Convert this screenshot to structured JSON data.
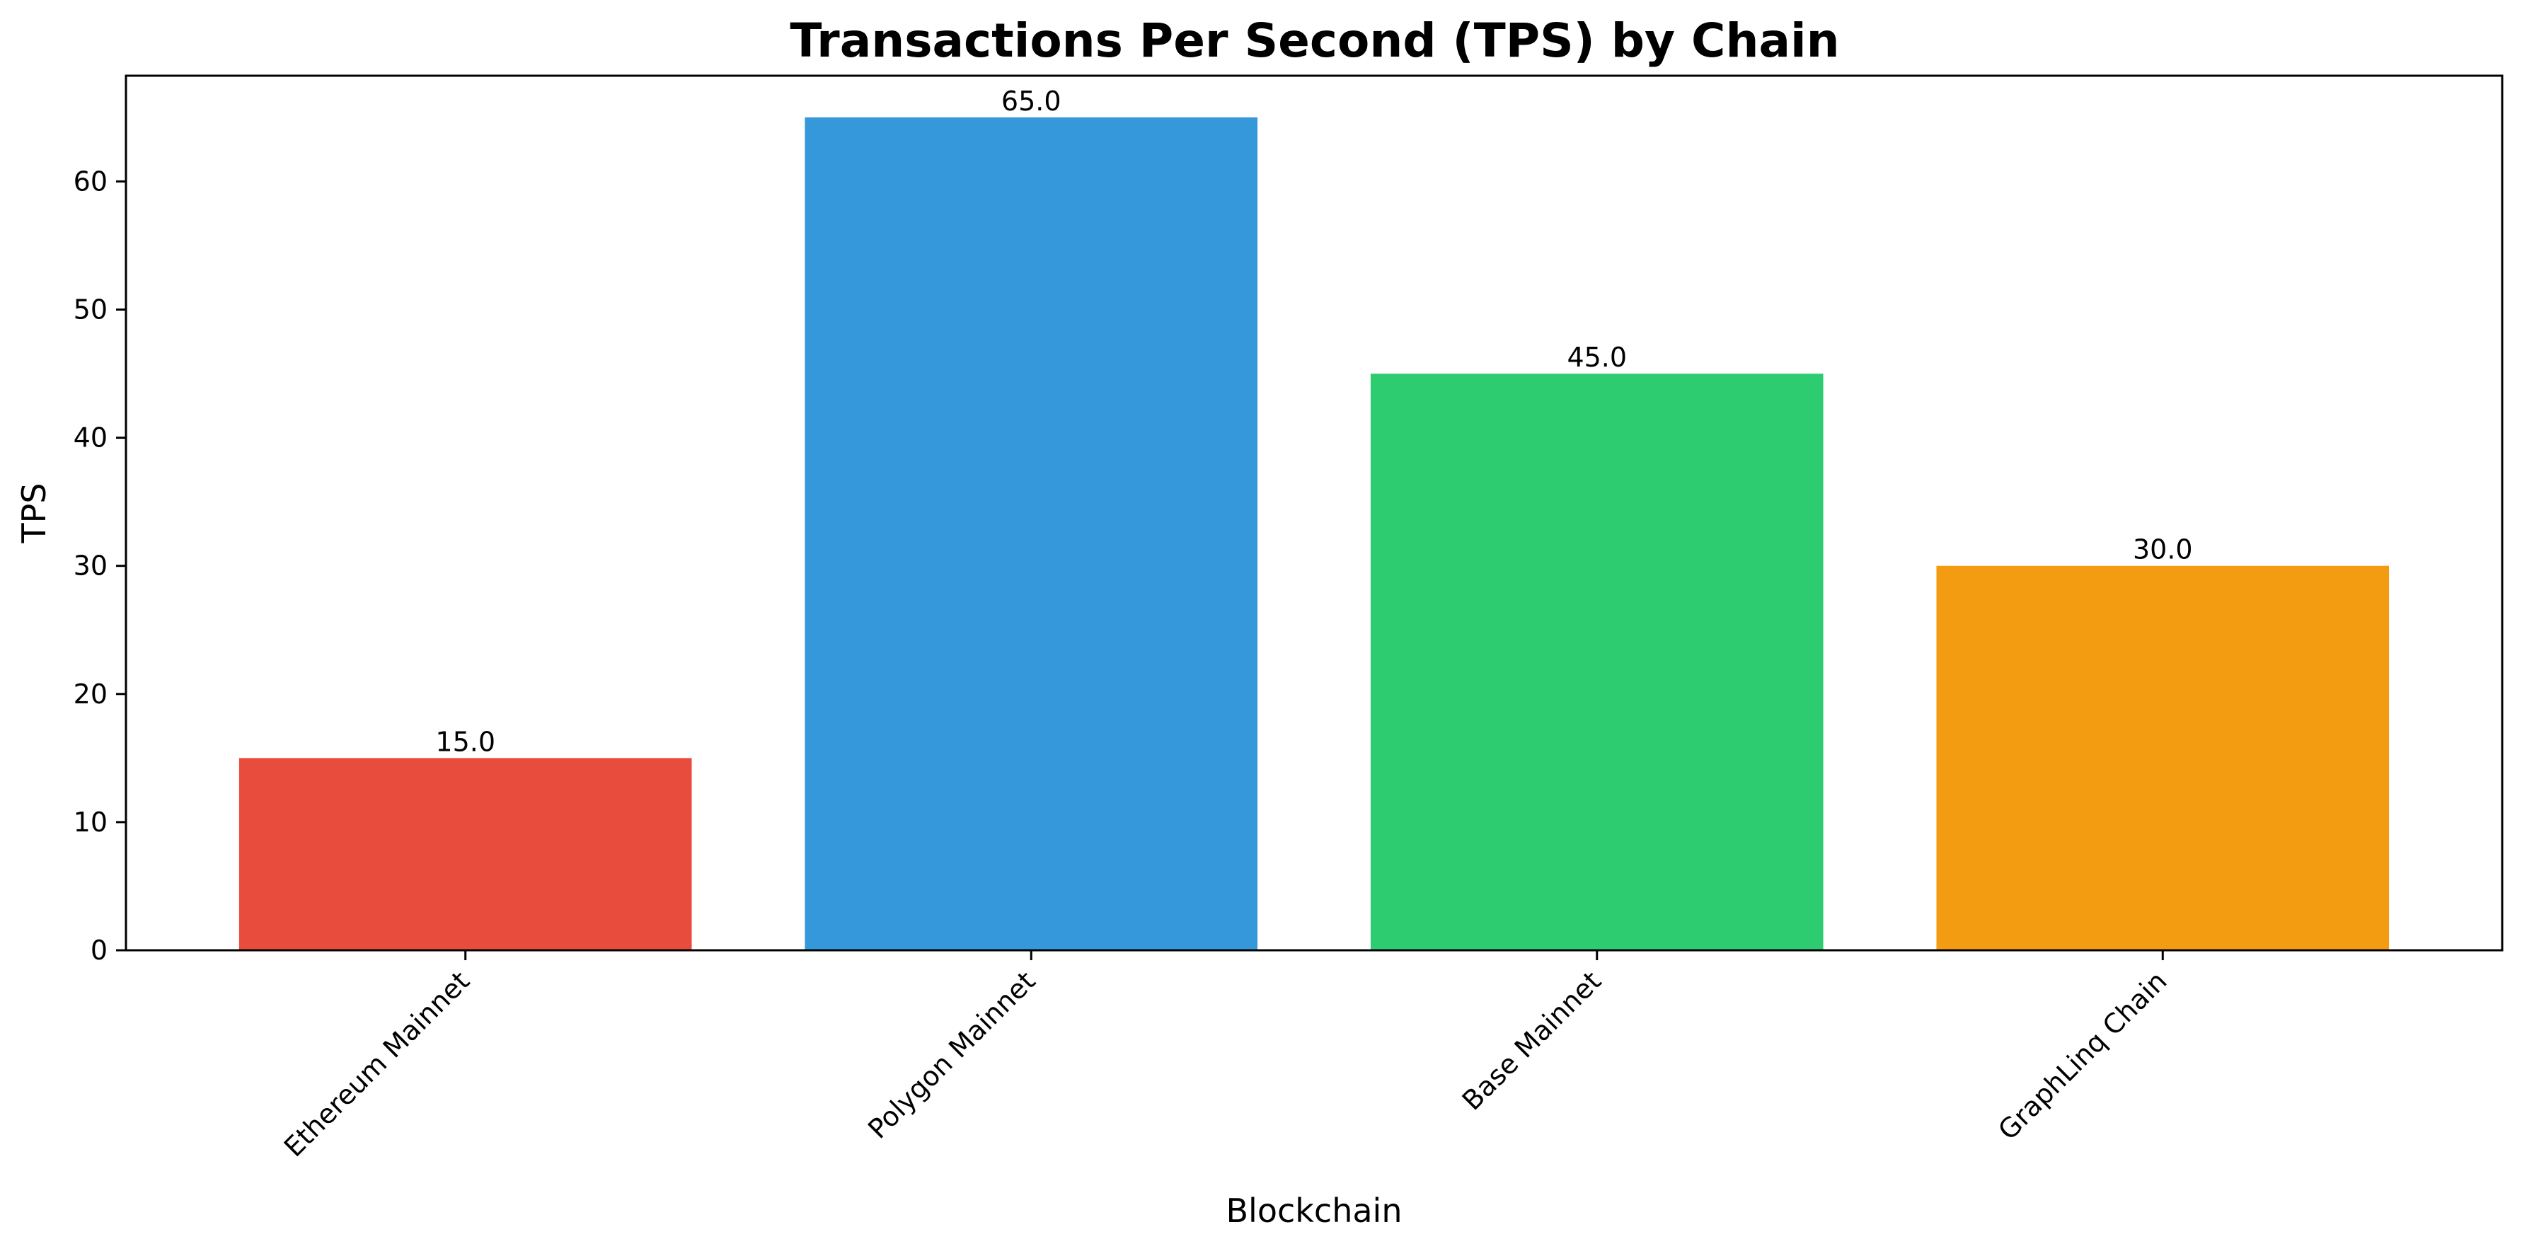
{
  "chart_data": {
    "type": "bar",
    "title": "Transactions Per Second (TPS) by Chain",
    "xlabel": "Blockchain",
    "ylabel": "TPS",
    "categories": [
      "Ethereum Mainnet",
      "Polygon Mainnet",
      "Base Mainnet",
      "GraphLinq Chain"
    ],
    "values": [
      15.0,
      65.0,
      45.0,
      30.0
    ],
    "value_labels": [
      "15.0",
      "65.0",
      "45.0",
      "30.0"
    ],
    "colors": [
      "#e74c3c",
      "#3498db",
      "#2ecc71",
      "#f39c12"
    ],
    "ylim": [
      0,
      68.25
    ],
    "yticks": [
      0,
      10,
      20,
      30,
      40,
      50,
      60
    ],
    "grid": false,
    "xtick_rotation_deg": 45
  }
}
